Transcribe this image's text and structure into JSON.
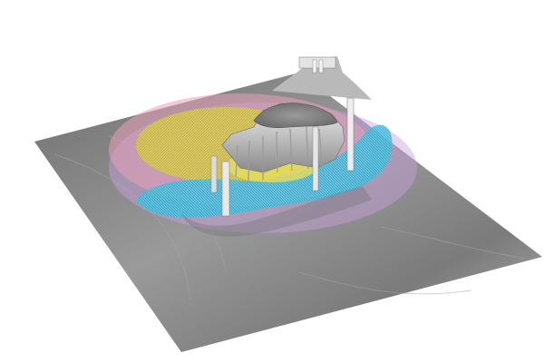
{
  "scene": {
    "description_visible_text": "",
    "terrain_color": "#8c8c8c",
    "plume_layers": [
      {
        "name": "outer",
        "color": "#c8a0e0"
      },
      {
        "name": "pink",
        "color": "#e8a0b8"
      },
      {
        "name": "yellow",
        "color": "#c8c040"
      },
      {
        "name": "cyan",
        "color": "#30b8d8"
      }
    ]
  }
}
